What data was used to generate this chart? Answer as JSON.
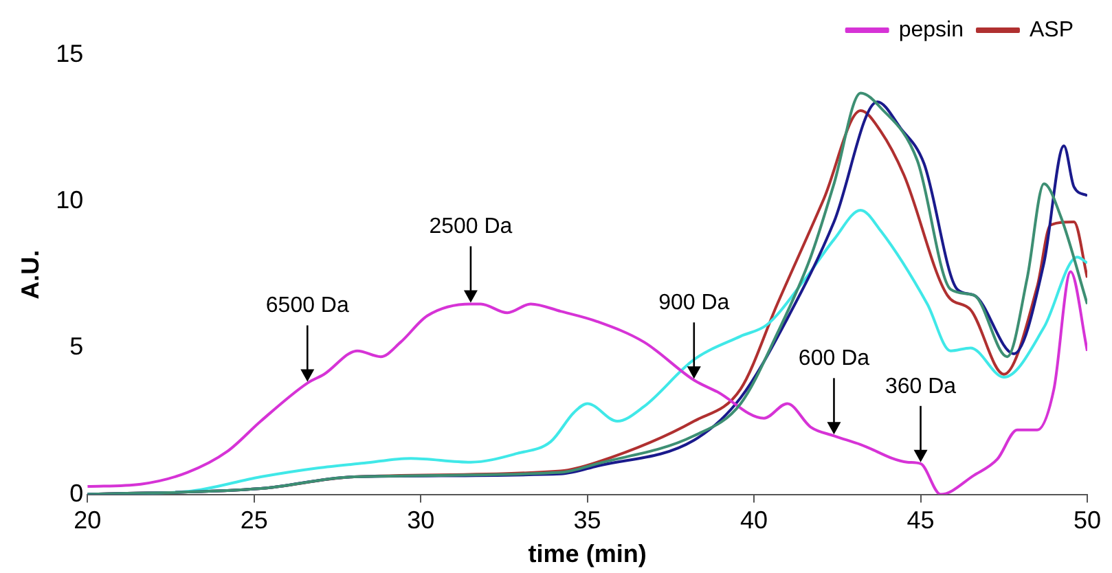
{
  "chart_data": {
    "type": "line",
    "xlabel": "time (min)",
    "ylabel": "A.U.",
    "xlim": [
      20,
      50
    ],
    "xticks": [
      20,
      25,
      30,
      35,
      40,
      45,
      50
    ],
    "ylim": [
      0,
      15
    ],
    "yticks": [
      0,
      5,
      10,
      15
    ],
    "grid": false,
    "legend": "top",
    "marker": "none",
    "line_style": "solid",
    "series": [
      {
        "color": "#3d8f73",
        "x": [
          20,
          25.2,
          28,
          34.2,
          35.3,
          38.2,
          39.6,
          40.7,
          41.7,
          42.4,
          43.2,
          43.8,
          44.9,
          45.9,
          46.6,
          47.6,
          48.2,
          48.7,
          49.2,
          50
        ],
        "values": [
          0,
          0.2,
          0.6,
          0.75,
          1.05,
          2.0,
          3.1,
          5.5,
          8.1,
          10.6,
          13.7,
          13.2,
          11.4,
          7.0,
          6.8,
          4.7,
          7.4,
          10.6,
          9.5,
          6.5
        ]
      },
      {
        "name": "pepsin",
        "color": "#d633d6",
        "x": [
          20,
          21.6,
          23,
          24.2,
          25.2,
          26.6,
          27.1,
          28.1,
          28.8,
          29.4,
          30.2,
          31.5,
          31.8,
          32.6,
          33.3,
          34.2,
          35.3,
          36.7,
          38.2,
          38.9,
          40.3,
          41,
          41.7,
          42.4,
          43.2,
          44.6,
          45,
          45.6,
          46.6,
          47.3,
          47.9,
          48.5,
          49,
          49.5,
          50
        ],
        "values": [
          0.27,
          0.35,
          0.75,
          1.47,
          2.5,
          3.8,
          4.1,
          4.9,
          4.7,
          5.2,
          6.1,
          6.5,
          6.5,
          6.2,
          6.5,
          6.25,
          5.9,
          5.2,
          3.9,
          3.5,
          2.6,
          3.1,
          2.3,
          2.0,
          1.7,
          1.1,
          1.05,
          0,
          0.65,
          1.2,
          2.2,
          2.2,
          3.6,
          7.6,
          4.9
        ]
      },
      {
        "color": "#1a1a8c",
        "x": [
          20,
          25.2,
          28,
          34.2,
          35.3,
          38.2,
          39.6,
          41,
          42.4,
          43.7,
          44.4,
          45.1,
          46.1,
          46.6,
          47.8,
          48.7,
          49.3,
          49.6,
          50
        ],
        "values": [
          0,
          0.2,
          0.6,
          0.7,
          0.97,
          1.85,
          3.3,
          6.0,
          9.3,
          13.4,
          12.5,
          11.3,
          7.0,
          6.8,
          4.8,
          7.9,
          11.9,
          10.5,
          10.2
        ]
      },
      {
        "color": "#40e8e8",
        "x": [
          20,
          23,
          25.2,
          26.9,
          28.3,
          29.7,
          31.5,
          32.9,
          33.9,
          34.6,
          35,
          35.9,
          36.7,
          38.2,
          39.6,
          40.4,
          41.5,
          42.4,
          43.2,
          43.8,
          45.2,
          45.9,
          46.5,
          47.5,
          48.7,
          49.7,
          50
        ],
        "values": [
          0,
          0.1,
          0.6,
          0.9,
          1.07,
          1.23,
          1.1,
          1.4,
          1.8,
          2.8,
          3.1,
          2.5,
          3.0,
          4.6,
          5.4,
          5.8,
          7.3,
          8.7,
          9.7,
          9.0,
          6.5,
          4.9,
          5.0,
          4.0,
          5.7,
          8.1,
          7.9
        ]
      },
      {
        "name": "ASP",
        "color": "#b03030",
        "x": [
          20,
          25.2,
          28,
          34.2,
          35.3,
          38.2,
          39.6,
          40.7,
          42.1,
          43.2,
          43.8,
          44.5,
          45.8,
          46.5,
          47.5,
          48.5,
          48.9,
          49.6,
          50
        ],
        "values": [
          0,
          0.2,
          0.6,
          0.8,
          1.1,
          2.5,
          3.6,
          6.5,
          10.1,
          13.1,
          12.4,
          10.9,
          6.8,
          6.3,
          4.1,
          7.1,
          9.2,
          9.3,
          7.4
        ]
      }
    ],
    "annotations": [
      {
        "text": "6500 Da",
        "x": 26.6,
        "y": 3.8
      },
      {
        "text": "2500 Da",
        "x": 31.5,
        "y": 6.5
      },
      {
        "text": "900 Da",
        "x": 38.2,
        "y": 3.9
      },
      {
        "text": "600 Da",
        "x": 42.4,
        "y": 2.0
      },
      {
        "text": "360 Da",
        "x": 45,
        "y": 1.05
      }
    ]
  }
}
